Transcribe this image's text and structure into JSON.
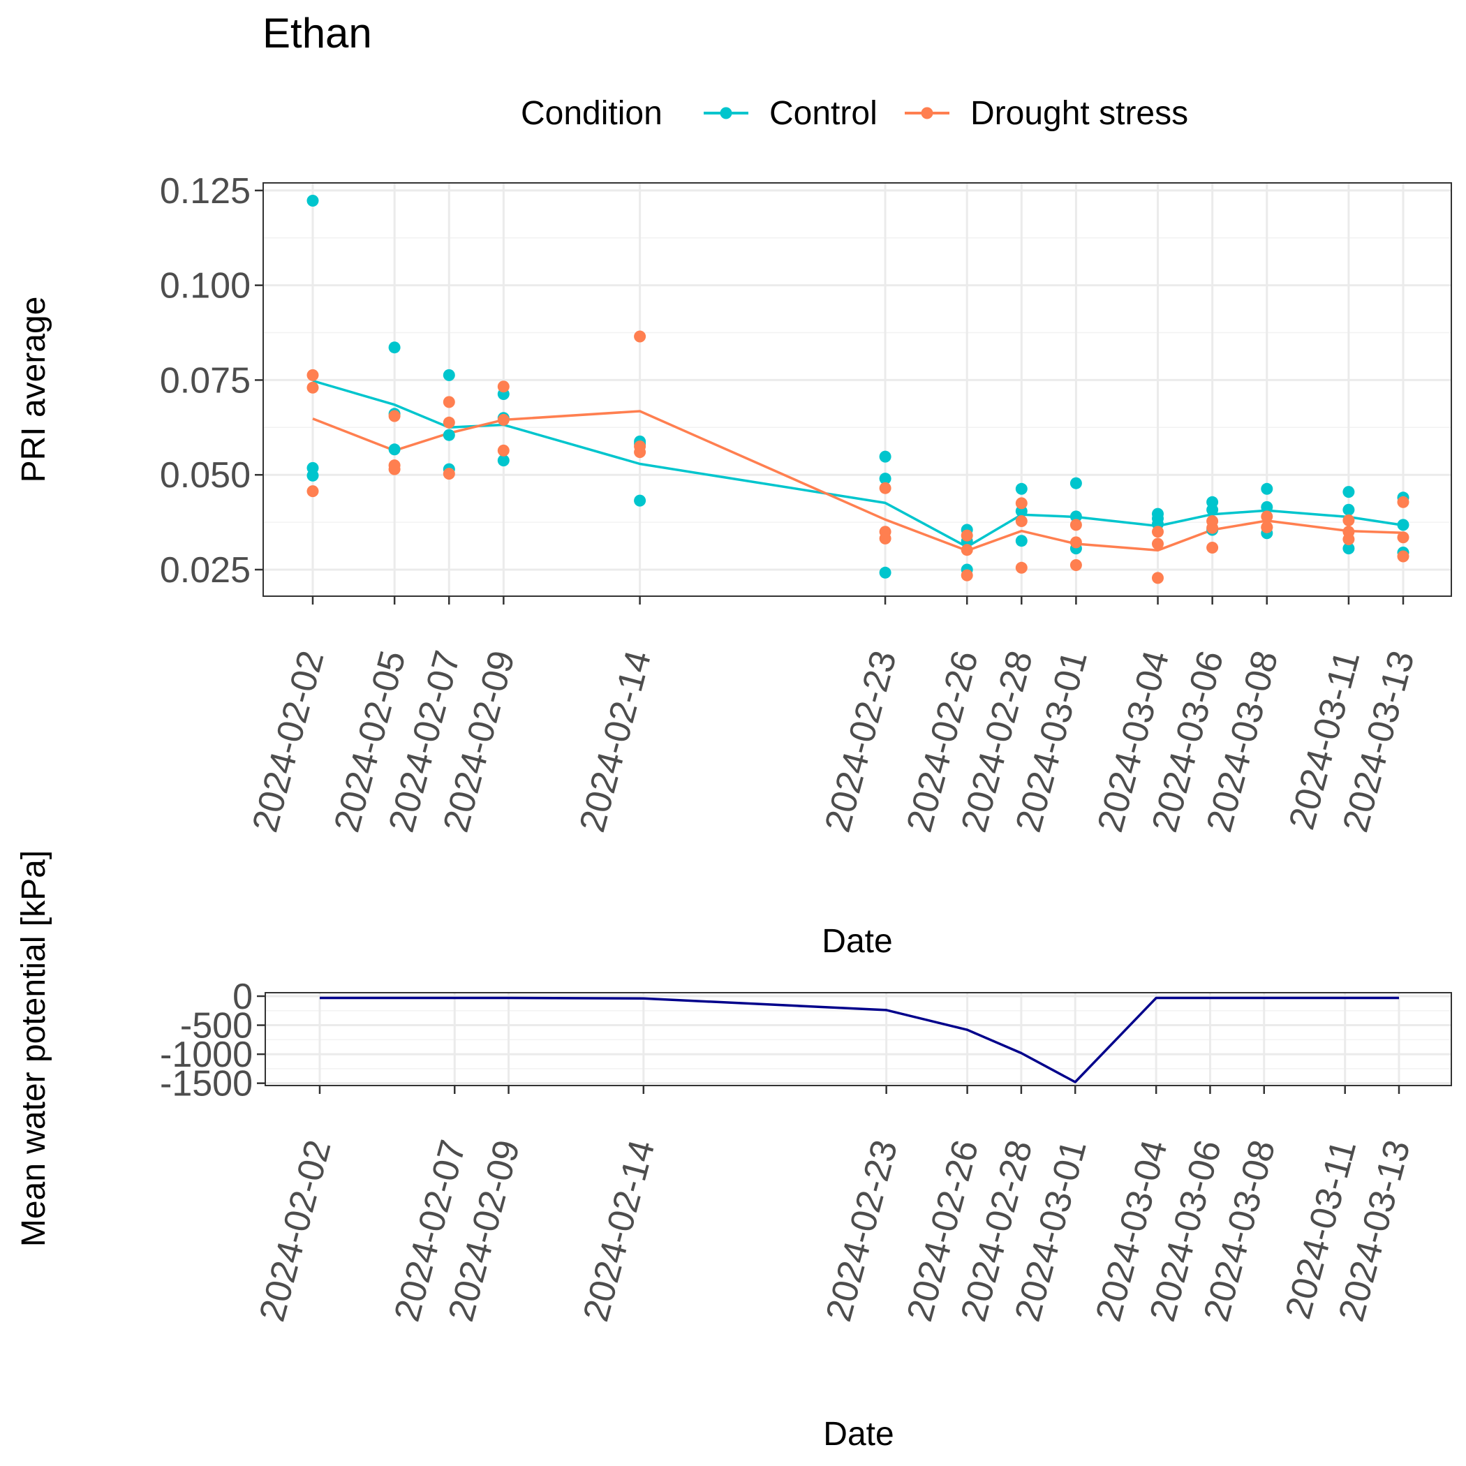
{
  "title": "Ethan",
  "legend": {
    "title": "Condition",
    "placement": "top",
    "items": [
      {
        "label": "Control",
        "color": "#00C5CD"
      },
      {
        "label": "Drought stress",
        "color": "#FF7F50"
      }
    ]
  },
  "chart_data": [
    {
      "type": "scatter",
      "title": "",
      "xlabel": "Date",
      "ylabel": "PRI average",
      "x_type": "date",
      "grid": true,
      "categories": [
        "2024-02-02",
        "2024-02-05",
        "2024-02-07",
        "2024-02-09",
        "2024-02-14",
        "2024-02-23",
        "2024-02-26",
        "2024-02-28",
        "2024-03-01",
        "2024-03-04",
        "2024-03-06",
        "2024-03-08",
        "2024-03-11",
        "2024-03-13"
      ],
      "yticks": [
        0.025,
        0.05,
        0.075,
        0.1,
        0.125
      ],
      "ytick_labels": [
        "0.025",
        "0.050",
        "0.075",
        "0.100",
        "0.125"
      ],
      "ylim": [
        0.018,
        0.127
      ],
      "series": [
        {
          "name": "Control",
          "color": "#00C5CD",
          "points": [
            [
              0.1223,
              0.0518,
              0.0498
            ],
            [
              0.0836,
              0.0661,
              0.0567
            ],
            [
              0.0763,
              0.0605,
              0.0515
            ],
            [
              0.0713,
              0.065,
              0.0538
            ],
            [
              0.0588,
              0.0582,
              0.0432
            ],
            [
              0.0548,
              0.049,
              0.0242
            ],
            [
              0.0355,
              0.0325,
              0.025
            ],
            [
              0.0463,
              0.0404,
              0.0326
            ],
            [
              0.0478,
              0.039,
              0.0306
            ],
            [
              0.0397,
              0.0385,
              0.037
            ],
            [
              0.0428,
              0.0408,
              0.0355
            ],
            [
              0.0463,
              0.0415,
              0.0346
            ],
            [
              0.0455,
              0.0408,
              0.0306
            ],
            [
              0.044,
              0.0368,
              0.0295
            ]
          ],
          "trend": [
            0.0748,
            0.0685,
            0.0625,
            0.0632,
            0.0529,
            0.0426,
            0.031,
            0.0395,
            0.0389,
            0.0365,
            0.0396,
            0.0406,
            0.0389,
            0.0367
          ]
        },
        {
          "name": "Drought stress",
          "color": "#FF7F50",
          "points": [
            [
              0.0763,
              0.073,
              0.0457
            ],
            [
              0.0655,
              0.0525,
              0.0515
            ],
            [
              0.0692,
              0.0638,
              0.0503
            ],
            [
              0.0733,
              0.0645,
              0.0564
            ],
            [
              0.0865,
              0.0575,
              0.056
            ],
            [
              0.0465,
              0.035,
              0.0332
            ],
            [
              0.034,
              0.0302,
              0.0235
            ],
            [
              0.0425,
              0.0378,
              0.0255
            ],
            [
              0.0368,
              0.0322,
              0.0262
            ],
            [
              0.035,
              0.0318,
              0.0228
            ],
            [
              0.0378,
              0.036,
              0.0308
            ],
            [
              0.039,
              0.0362,
              0.0362
            ],
            [
              0.038,
              0.035,
              0.033
            ],
            [
              0.0428,
              0.0335,
              0.0285
            ]
          ],
          "trend": [
            0.0648,
            0.0564,
            0.061,
            0.0645,
            0.0668,
            0.0382,
            0.03,
            0.0352,
            0.0318,
            0.0301,
            0.0355,
            0.0379,
            0.0352,
            0.0347
          ]
        }
      ]
    },
    {
      "type": "line",
      "title": "",
      "xlabel": "Date",
      "ylabel": "Mean water potential [kPa]",
      "x_type": "date",
      "grid": true,
      "categories": [
        "2024-02-02",
        "2024-02-07",
        "2024-02-09",
        "2024-02-14",
        "2024-02-23",
        "2024-02-26",
        "2024-02-28",
        "2024-03-01",
        "2024-03-04",
        "2024-03-06",
        "2024-03-08",
        "2024-03-11",
        "2024-03-13"
      ],
      "yticks": [
        0,
        -500,
        -1000,
        -1500
      ],
      "ytick_labels": [
        "0",
        "-500",
        "-1000",
        "-1500"
      ],
      "ylim": [
        -1540,
        60
      ],
      "series": [
        {
          "name": "",
          "color": "#00008B",
          "values": [
            -30,
            -30,
            -30,
            -40,
            -240,
            -580,
            -980,
            -1480,
            -30,
            -30,
            -30,
            -30,
            -30
          ]
        }
      ]
    }
  ]
}
